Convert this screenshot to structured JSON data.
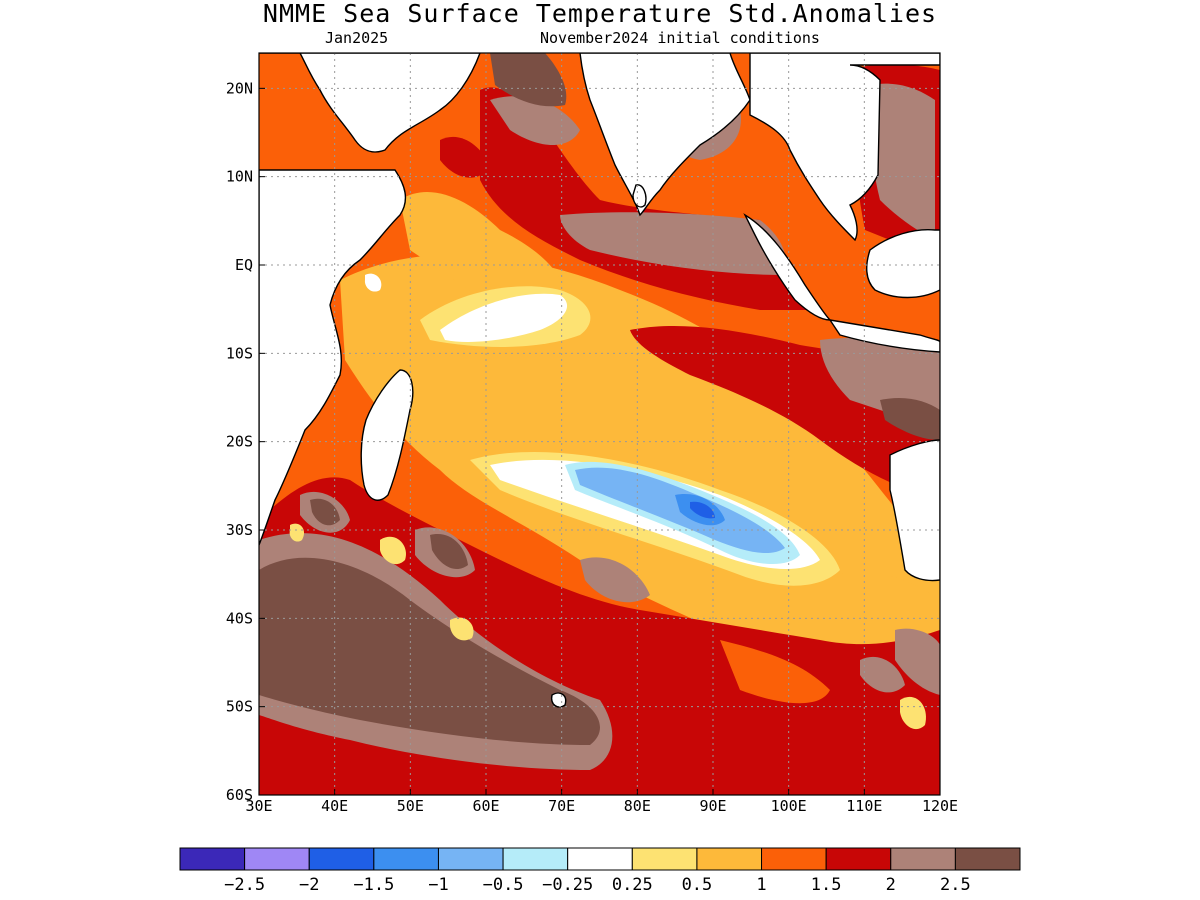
{
  "title": "NMME Sea Surface Temperature Std.Anomalies",
  "subtitle_left": "Jan2025",
  "subtitle_right": "November2024 initial conditions",
  "map": {
    "lon_range": [
      30,
      120
    ],
    "lat_range": [
      -60,
      24
    ],
    "lon_ticks": [
      {
        "value": 30,
        "label": "30E"
      },
      {
        "value": 40,
        "label": "40E"
      },
      {
        "value": 50,
        "label": "50E"
      },
      {
        "value": 60,
        "label": "60E"
      },
      {
        "value": 70,
        "label": "70E"
      },
      {
        "value": 80,
        "label": "80E"
      },
      {
        "value": 90,
        "label": "90E"
      },
      {
        "value": 100,
        "label": "100E"
      },
      {
        "value": 110,
        "label": "110E"
      },
      {
        "value": 120,
        "label": "120E"
      }
    ],
    "lat_ticks": [
      {
        "value": 20,
        "label": "20N"
      },
      {
        "value": 10,
        "label": "10N"
      },
      {
        "value": 0,
        "label": "EQ"
      },
      {
        "value": -10,
        "label": "10S"
      },
      {
        "value": -20,
        "label": "20S"
      },
      {
        "value": -30,
        "label": "30S"
      },
      {
        "value": -40,
        "label": "40S"
      },
      {
        "value": -50,
        "label": "50S"
      },
      {
        "value": -60,
        "label": "60S"
      }
    ]
  },
  "legend": {
    "colors": [
      "#3b28b8",
      "#9f87f5",
      "#1f5fe6",
      "#3c8ff0",
      "#76b4f4",
      "#b5ecf9",
      "#ffffff",
      "#fde272",
      "#fdb93a",
      "#fb6008",
      "#c80606",
      "#ad8278",
      "#7a4f44"
    ],
    "labels": [
      "−2.5",
      "−2",
      "−1.5",
      "−1",
      "−0.5",
      "−0.25",
      "0.25",
      "0.5",
      "1",
      "1.5",
      "2",
      "2.5"
    ]
  }
}
